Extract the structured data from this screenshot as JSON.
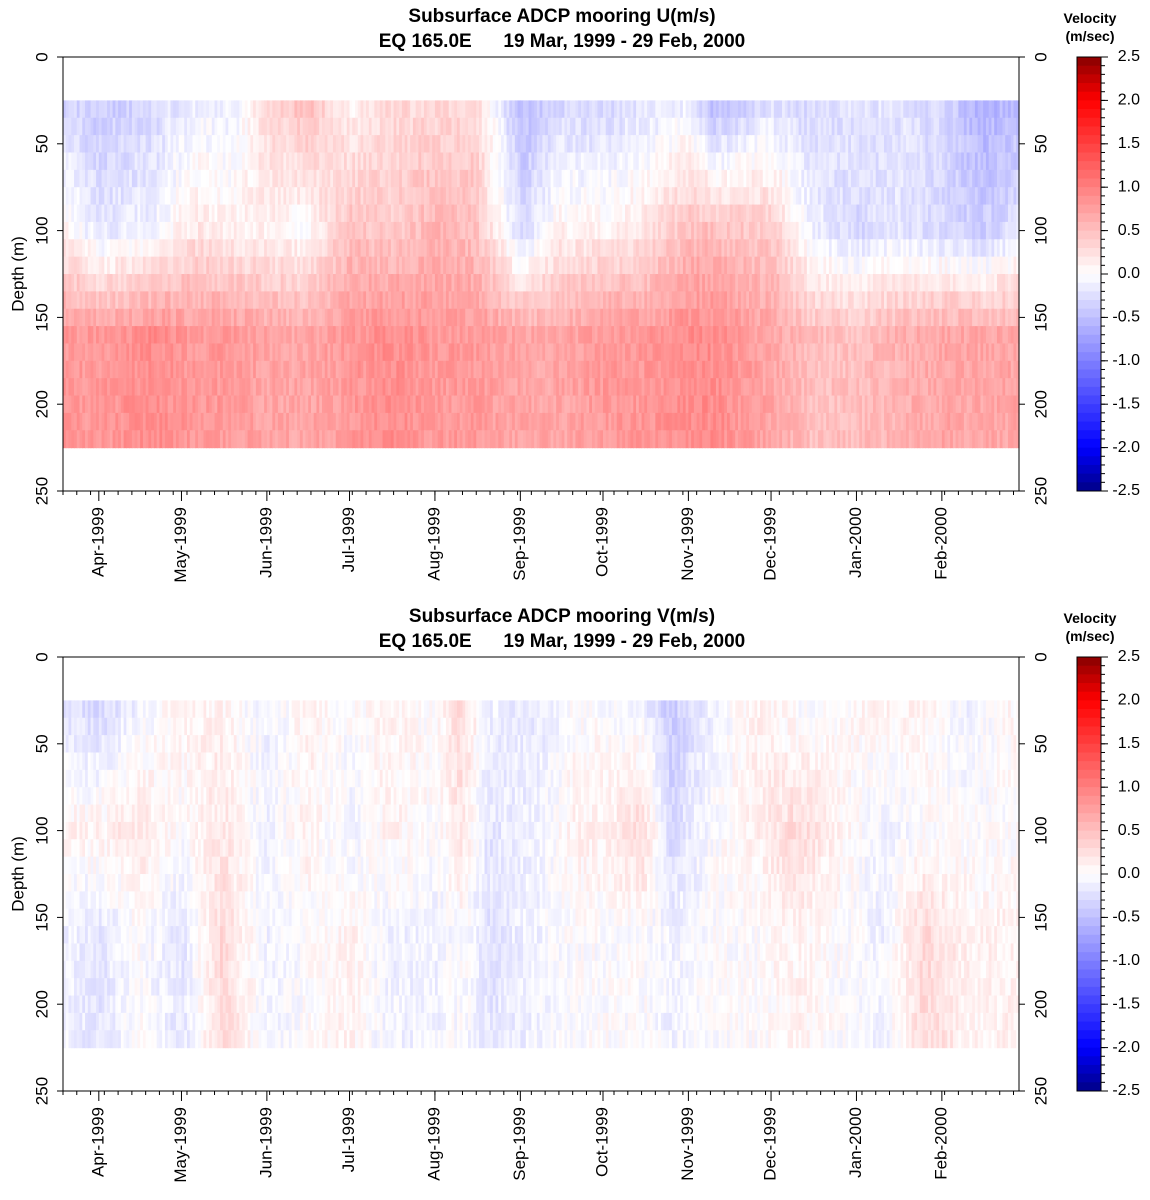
{
  "chart_data": [
    {
      "type": "heatmap",
      "title": "Subsurface ADCP mooring U(m/s)",
      "subtitle_location": "EQ 165.0E",
      "subtitle_dates": "19 Mar, 1999 - 29 Feb, 2000",
      "ylabel": "Depth (m)",
      "ylim": [
        250,
        0
      ],
      "yticks": [
        "0",
        "50",
        "100",
        "150",
        "200",
        "250"
      ],
      "x_tick_labels": [
        "Apr-1999",
        "May-1999",
        "Jun-1999",
        "Jul-1999",
        "Aug-1999",
        "Sep-1999",
        "Oct-1999",
        "Nov-1999",
        "Dec-1999",
        "Jan-2000",
        "Feb-2000"
      ],
      "depths": [
        30,
        40,
        50,
        60,
        70,
        80,
        90,
        100,
        110,
        120,
        130,
        140,
        150,
        160,
        170,
        180,
        190,
        200,
        210,
        220
      ],
      "colorbar": {
        "title_line1": "Velocity",
        "title_line2": "(m/sec)",
        "range": [
          -2.5,
          2.5
        ],
        "ticks": [
          "2.5",
          "2.0",
          "1.5",
          "1.0",
          "0.5",
          "0.0",
          "-0.5",
          "-1.0",
          "-1.5",
          "-2.0",
          "-2.5"
        ]
      },
      "velocity_field": [
        {
          "date": "1999-03-19",
          "upper": -0.3,
          "mid": 0.1,
          "deep": 0.8
        },
        {
          "date": "1999-04-01",
          "upper": -0.4,
          "mid": -0.2,
          "deep": 0.8
        },
        {
          "date": "1999-04-20",
          "upper": -0.3,
          "mid": -0.1,
          "deep": 0.9
        },
        {
          "date": "1999-05-05",
          "upper": -0.1,
          "mid": 0.2,
          "deep": 0.8
        },
        {
          "date": "1999-05-20",
          "upper": -0.1,
          "mid": 0.1,
          "deep": 0.8
        },
        {
          "date": "1999-06-01",
          "upper": 0.3,
          "mid": 0.1,
          "deep": 0.7
        },
        {
          "date": "1999-06-15",
          "upper": 0.5,
          "mid": 0.0,
          "deep": 0.7
        },
        {
          "date": "1999-07-01",
          "upper": 0.1,
          "mid": 0.5,
          "deep": 0.8
        },
        {
          "date": "1999-07-15",
          "upper": 0.3,
          "mid": 0.4,
          "deep": 0.9
        },
        {
          "date": "1999-08-01",
          "upper": 0.3,
          "mid": 0.6,
          "deep": 0.8
        },
        {
          "date": "1999-08-15",
          "upper": 0.3,
          "mid": 0.5,
          "deep": 0.8
        },
        {
          "date": "1999-09-01",
          "upper": -0.5,
          "mid": -0.3,
          "deep": 0.7
        },
        {
          "date": "1999-09-15",
          "upper": -0.3,
          "mid": 0.1,
          "deep": 0.7
        },
        {
          "date": "1999-10-01",
          "upper": -0.3,
          "mid": 0.1,
          "deep": 0.8
        },
        {
          "date": "1999-10-15",
          "upper": -0.2,
          "mid": 0.2,
          "deep": 0.8
        },
        {
          "date": "1999-11-01",
          "upper": -0.1,
          "mid": 0.5,
          "deep": 0.9
        },
        {
          "date": "1999-11-10",
          "upper": -0.5,
          "mid": 0.5,
          "deep": 0.9
        },
        {
          "date": "1999-12-01",
          "upper": -0.2,
          "mid": 0.4,
          "deep": 0.7
        },
        {
          "date": "1999-12-15",
          "upper": -0.3,
          "mid": -0.1,
          "deep": 0.5
        },
        {
          "date": "2000-01-01",
          "upper": -0.2,
          "mid": -0.3,
          "deep": 0.5
        },
        {
          "date": "2000-01-15",
          "upper": -0.2,
          "mid": -0.2,
          "deep": 0.6
        },
        {
          "date": "2000-02-01",
          "upper": -0.3,
          "mid": -0.3,
          "deep": 0.7
        },
        {
          "date": "2000-02-15",
          "upper": -0.6,
          "mid": -0.4,
          "deep": 0.7
        },
        {
          "date": "2000-02-29",
          "upper": -0.5,
          "mid": -0.2,
          "deep": 0.7
        }
      ]
    },
    {
      "type": "heatmap",
      "title": "Subsurface ADCP mooring V(m/s)",
      "subtitle_location": "EQ 165.0E",
      "subtitle_dates": "19 Mar, 1999 - 29 Feb, 2000",
      "ylabel": "Depth (m)",
      "ylim": [
        250,
        0
      ],
      "yticks": [
        "0",
        "50",
        "100",
        "150",
        "200",
        "250"
      ],
      "x_tick_labels": [
        "Apr-1999",
        "May-1999",
        "Jun-1999",
        "Jul-1999",
        "Aug-1999",
        "Sep-1999",
        "Oct-1999",
        "Nov-1999",
        "Dec-1999",
        "Jan-2000",
        "Feb-2000"
      ],
      "depths": [
        30,
        40,
        50,
        60,
        70,
        80,
        90,
        100,
        110,
        120,
        130,
        140,
        150,
        160,
        170,
        180,
        190,
        200,
        210,
        220
      ],
      "colorbar": {
        "title_line1": "Velocity",
        "title_line2": "(m/sec)",
        "range": [
          -2.5,
          2.5
        ],
        "ticks": [
          "2.5",
          "2.0",
          "1.5",
          "1.0",
          "0.5",
          "0.0",
          "-0.5",
          "-1.0",
          "-1.5",
          "-2.0",
          "-2.5"
        ]
      },
      "velocity_field": [
        {
          "date": "1999-03-19",
          "upper": -0.2,
          "mid": 0.1,
          "deep": -0.1
        },
        {
          "date": "1999-04-01",
          "upper": -0.3,
          "mid": 0.1,
          "deep": -0.2
        },
        {
          "date": "1999-04-15",
          "upper": -0.1,
          "mid": 0.2,
          "deep": 0.0
        },
        {
          "date": "1999-05-01",
          "upper": 0.1,
          "mid": 0.0,
          "deep": -0.2
        },
        {
          "date": "1999-05-15",
          "upper": 0.1,
          "mid": 0.2,
          "deep": 0.3
        },
        {
          "date": "1999-06-01",
          "upper": -0.1,
          "mid": -0.1,
          "deep": -0.1
        },
        {
          "date": "1999-06-15",
          "upper": 0.1,
          "mid": 0.1,
          "deep": 0.0
        },
        {
          "date": "1999-07-01",
          "upper": 0.0,
          "mid": -0.1,
          "deep": 0.1
        },
        {
          "date": "1999-07-15",
          "upper": 0.1,
          "mid": 0.1,
          "deep": -0.1
        },
        {
          "date": "1999-08-01",
          "upper": 0.0,
          "mid": 0.0,
          "deep": -0.1
        },
        {
          "date": "1999-08-10",
          "upper": 0.3,
          "mid": 0.2,
          "deep": 0.0
        },
        {
          "date": "1999-08-20",
          "upper": -0.1,
          "mid": -0.2,
          "deep": -0.2
        },
        {
          "date": "1999-09-05",
          "upper": -0.2,
          "mid": -0.1,
          "deep": -0.1
        },
        {
          "date": "1999-09-20",
          "upper": 0.0,
          "mid": 0.1,
          "deep": 0.0
        },
        {
          "date": "1999-10-01",
          "upper": 0.0,
          "mid": 0.1,
          "deep": 0.0
        },
        {
          "date": "1999-10-15",
          "upper": -0.1,
          "mid": 0.3,
          "deep": 0.0
        },
        {
          "date": "1999-10-25",
          "upper": -0.4,
          "mid": -0.3,
          "deep": -0.1
        },
        {
          "date": "1999-11-10",
          "upper": -0.1,
          "mid": 0.0,
          "deep": 0.0
        },
        {
          "date": "1999-11-25",
          "upper": 0.1,
          "mid": 0.1,
          "deep": 0.0
        },
        {
          "date": "1999-12-10",
          "upper": 0.0,
          "mid": 0.3,
          "deep": 0.1
        },
        {
          "date": "1999-12-25",
          "upper": 0.0,
          "mid": 0.1,
          "deep": 0.0
        },
        {
          "date": "2000-01-10",
          "upper": 0.1,
          "mid": -0.1,
          "deep": -0.1
        },
        {
          "date": "2000-01-25",
          "upper": 0.1,
          "mid": 0.0,
          "deep": 0.3
        },
        {
          "date": "2000-02-10",
          "upper": -0.1,
          "mid": 0.0,
          "deep": 0.1
        },
        {
          "date": "2000-02-29",
          "upper": 0.1,
          "mid": 0.0,
          "deep": 0.1
        }
      ]
    }
  ]
}
